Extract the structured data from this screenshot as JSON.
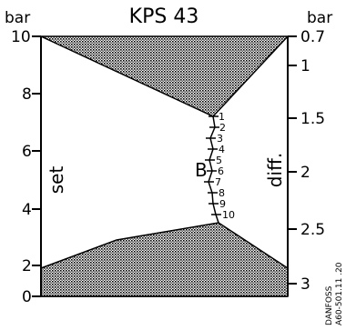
{
  "title": "KPS 43",
  "left_axis": {
    "unit": "bar",
    "label": "set",
    "ticks": [
      "10",
      "8",
      "6",
      "4",
      "2",
      "0"
    ]
  },
  "right_axis": {
    "unit": "bar",
    "label": "diff.",
    "ticks": [
      "0.7",
      "1",
      "1.5",
      "2",
      "2.5",
      "3"
    ]
  },
  "scale": {
    "letter": "B",
    "marks": [
      "1",
      "2",
      "3",
      "4",
      "5",
      "6",
      "7",
      "8",
      "9",
      "10"
    ]
  },
  "credit": {
    "line1": "DANFOSS",
    "line2": "A60-501.11 .20"
  }
}
